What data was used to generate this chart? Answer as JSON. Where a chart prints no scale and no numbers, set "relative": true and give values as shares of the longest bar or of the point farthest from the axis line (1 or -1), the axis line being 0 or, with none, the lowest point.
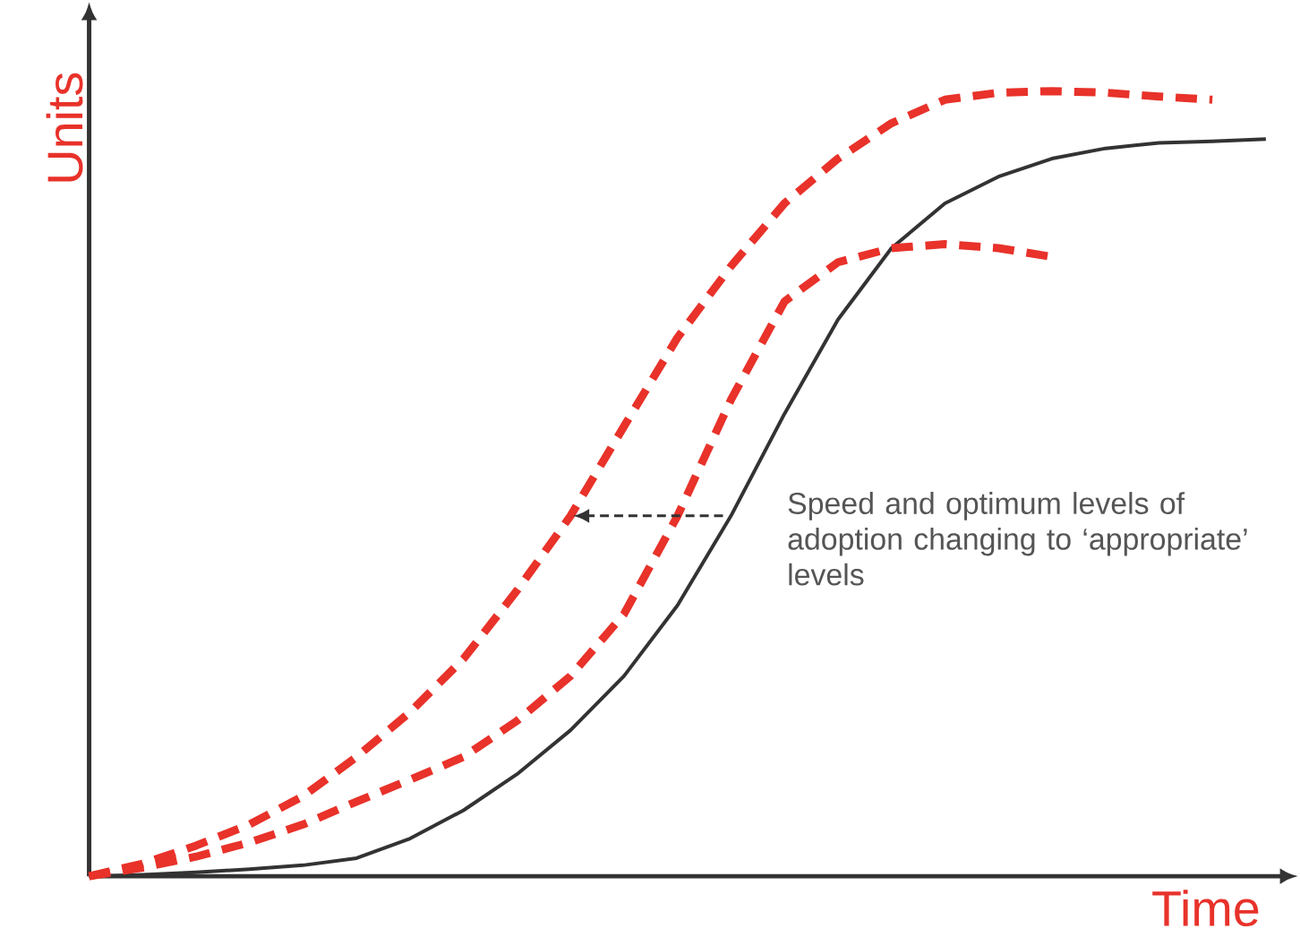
{
  "chart_data": {
    "type": "line",
    "relative": true,
    "xlabel": "Time",
    "ylabel": "Units",
    "categories": [
      null,
      null,
      null,
      null,
      null,
      null,
      null,
      null,
      null,
      null,
      null,
      null,
      null,
      null,
      null,
      null,
      null,
      null,
      null,
      null,
      null,
      null,
      null
    ],
    "series": [
      {
        "color": "#333333",
        "line_style": "solid",
        "values": [
          0,
          0.002,
          0.005,
          0.009,
          0.014,
          0.023,
          0.048,
          0.084,
          0.13,
          0.186,
          0.255,
          0.345,
          0.459,
          0.589,
          0.709,
          0.8,
          0.857,
          0.891,
          0.914,
          0.927,
          0.934,
          0.936,
          0.939
        ]
      },
      {
        "color": "#e8322a",
        "line_style": "dashed",
        "values": [
          0,
          0.016,
          0.039,
          0.066,
          0.102,
          0.152,
          0.209,
          0.277,
          0.364,
          0.459,
          0.573,
          0.686,
          0.777,
          0.857,
          0.914,
          0.959,
          0.989,
          0.998,
          1.0,
          0.998,
          0.993,
          0.989,
          null
        ]
      },
      {
        "color": "#e8322a",
        "line_style": "dashed",
        "values": [
          0,
          0.011,
          0.025,
          0.043,
          0.066,
          0.095,
          0.123,
          0.152,
          0.198,
          0.255,
          0.334,
          0.459,
          0.607,
          0.732,
          0.782,
          0.8,
          0.805,
          0.8,
          0.789,
          null,
          null,
          null,
          null
        ]
      }
    ],
    "annotations": [
      "Speed and optimum levels of adoption changing to ‘appropriate’ levels"
    ]
  }
}
